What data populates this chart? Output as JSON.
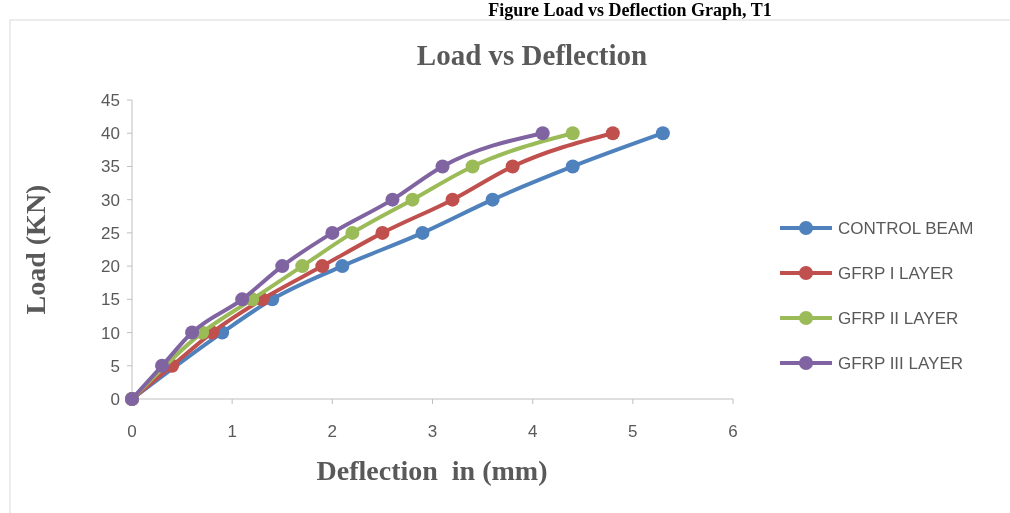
{
  "chart_data": {
    "type": "line",
    "title": "Load vs Deflection",
    "xlabel": "Deflection  in (mm)",
    "ylabel": "Load (KN)",
    "annotations": [
      "Figure Load vs Deflection Graph, T1"
    ],
    "xlim": [
      0,
      6
    ],
    "xticks": [
      0,
      1,
      2,
      3,
      4,
      5,
      6
    ],
    "ylim": [
      0,
      45
    ],
    "yticks": [
      0,
      5,
      10,
      15,
      20,
      25,
      30,
      35,
      40,
      45
    ],
    "grid": false,
    "legend": "right",
    "marker": "circle",
    "line_style": "solid",
    "series": [
      {
        "name": "CONTROL BEAM",
        "color": "#4f81bd",
        "x": [
          0,
          0.3,
          0.9,
          1.4,
          2.1,
          2.9,
          3.6,
          4.4,
          5.3
        ],
        "values": [
          0,
          null,
          10,
          15,
          20,
          25,
          30,
          35,
          40
        ]
      },
      {
        "name": "GFRP I LAYER",
        "color": "#c0504d",
        "x": [
          0,
          0.4,
          0.8,
          1.3,
          1.9,
          2.5,
          3.2,
          3.8,
          4.8
        ],
        "values": [
          0,
          5,
          10,
          15,
          20,
          25,
          30,
          35,
          40
        ]
      },
      {
        "name": "GFRP II LAYER",
        "color": "#9bbb59",
        "x": [
          0,
          0.3,
          0.7,
          1.2,
          1.7,
          2.2,
          2.8,
          3.4,
          4.4
        ],
        "values": [
          0,
          null,
          10,
          15,
          20,
          25,
          30,
          35,
          40
        ]
      },
      {
        "name": "GFRP III LAYER",
        "color": "#8064a2",
        "x": [
          0,
          0.3,
          0.6,
          1.1,
          1.5,
          2.0,
          2.6,
          3.1,
          4.1
        ],
        "values": [
          0,
          5,
          10,
          15,
          20,
          25,
          30,
          35,
          40
        ]
      }
    ]
  }
}
